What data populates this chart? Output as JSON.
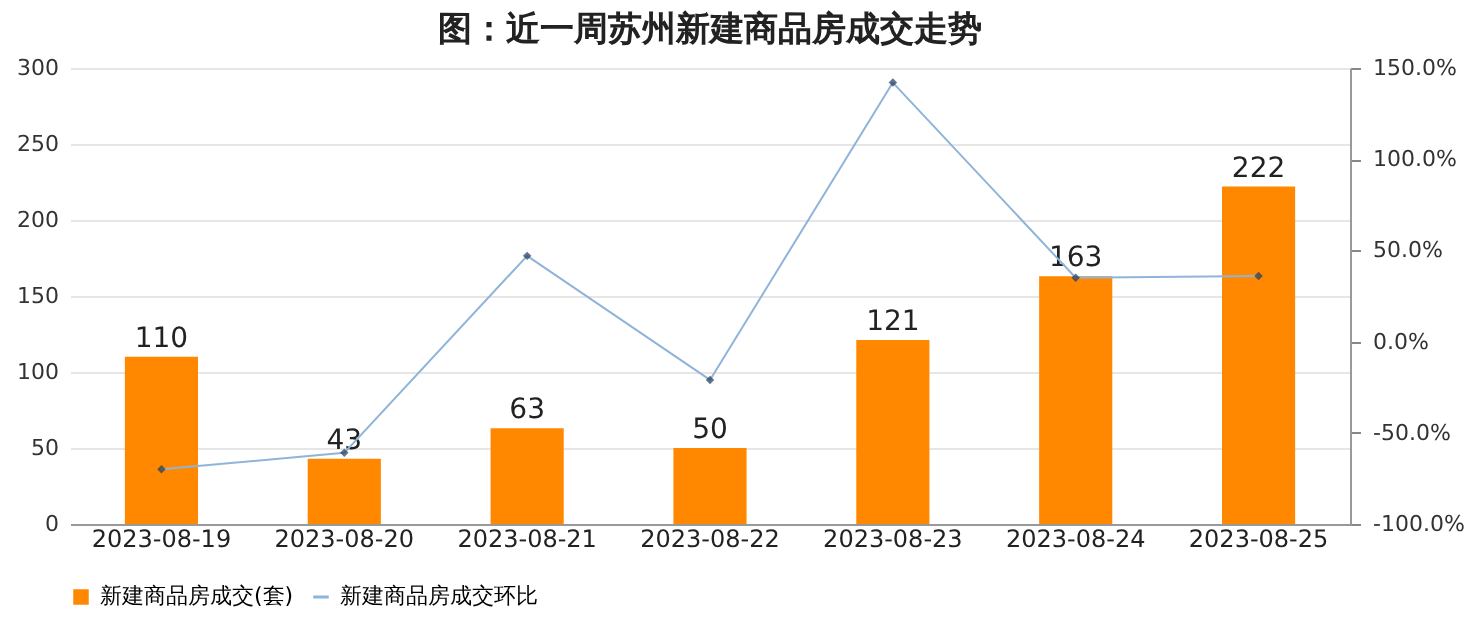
{
  "chart_data": {
    "type": "bar",
    "title": "图：近一周苏州新建商品房成交走势",
    "categories": [
      "2023-08-19",
      "2023-08-20",
      "2023-08-21",
      "2023-08-22",
      "2023-08-23",
      "2023-08-24",
      "2023-08-25"
    ],
    "series": [
      {
        "name": "新建商品房成交(套)",
        "color": "#ff8800",
        "values": [
          110,
          43,
          63,
          50,
          121,
          163,
          222
        ],
        "value_labels": [
          "110",
          "43",
          "63",
          "50",
          "121",
          "163",
          "222"
        ]
      },
      {
        "name": "新建商品房成交环比",
        "type": "line",
        "axis": "y2",
        "color": "#8fb4d9",
        "marker": "diamond",
        "values": [
          -70,
          -61,
          47,
          -21,
          142,
          35,
          36
        ]
      }
    ],
    "ylim": [
      0,
      300
    ],
    "yticks": [
      0,
      50,
      100,
      150,
      200,
      250,
      300
    ],
    "y2lim": [
      -100,
      150
    ],
    "y2ticks": [
      {
        "value": -100,
        "label": "-100.0%"
      },
      {
        "value": -50,
        "label": "-50.0%"
      },
      {
        "value": 0,
        "label": "0.0%"
      },
      {
        "value": 50,
        "label": "50.0%"
      },
      {
        "value": 100,
        "label": "100.0%"
      },
      {
        "value": 150,
        "label": "150.0%"
      }
    ],
    "grid": "y",
    "legend": "bottom"
  }
}
